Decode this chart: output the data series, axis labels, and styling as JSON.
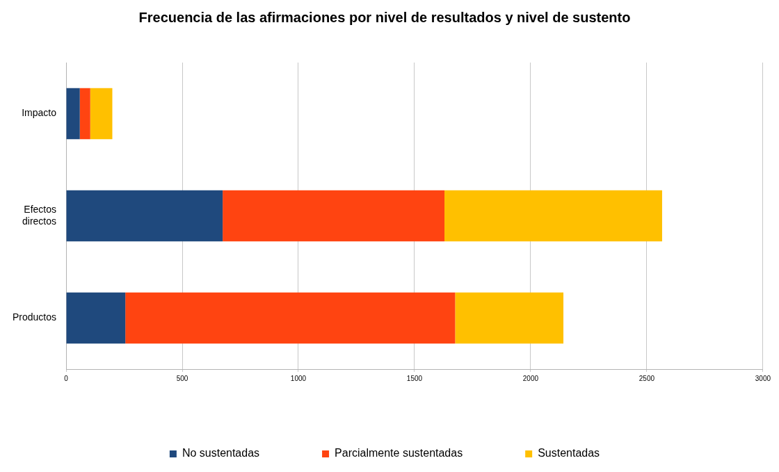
{
  "chart_data": {
    "type": "bar",
    "orientation": "horizontal",
    "stacked": true,
    "title": "Frecuencia de las afirmaciones por nivel de resultados y nivel de sustento",
    "categories": [
      "Impacto",
      "Efectos directos",
      "Productos"
    ],
    "series": [
      {
        "name": "No sustentadas",
        "color": "#1f497d",
        "values": [
          59,
          674,
          255
        ]
      },
      {
        "name": "Parcialmente sustentadas",
        "color": "#ff4411",
        "values": [
          45,
          955,
          1420
        ]
      },
      {
        "name": "Sustentadas",
        "color": "#ffc000",
        "values": [
          95,
          937,
          466
        ]
      }
    ],
    "xlim": [
      0,
      3000
    ],
    "xticks": [
      0,
      500,
      1000,
      1500,
      2000,
      2500,
      3000
    ],
    "grid": "x",
    "legend": "bottom"
  }
}
